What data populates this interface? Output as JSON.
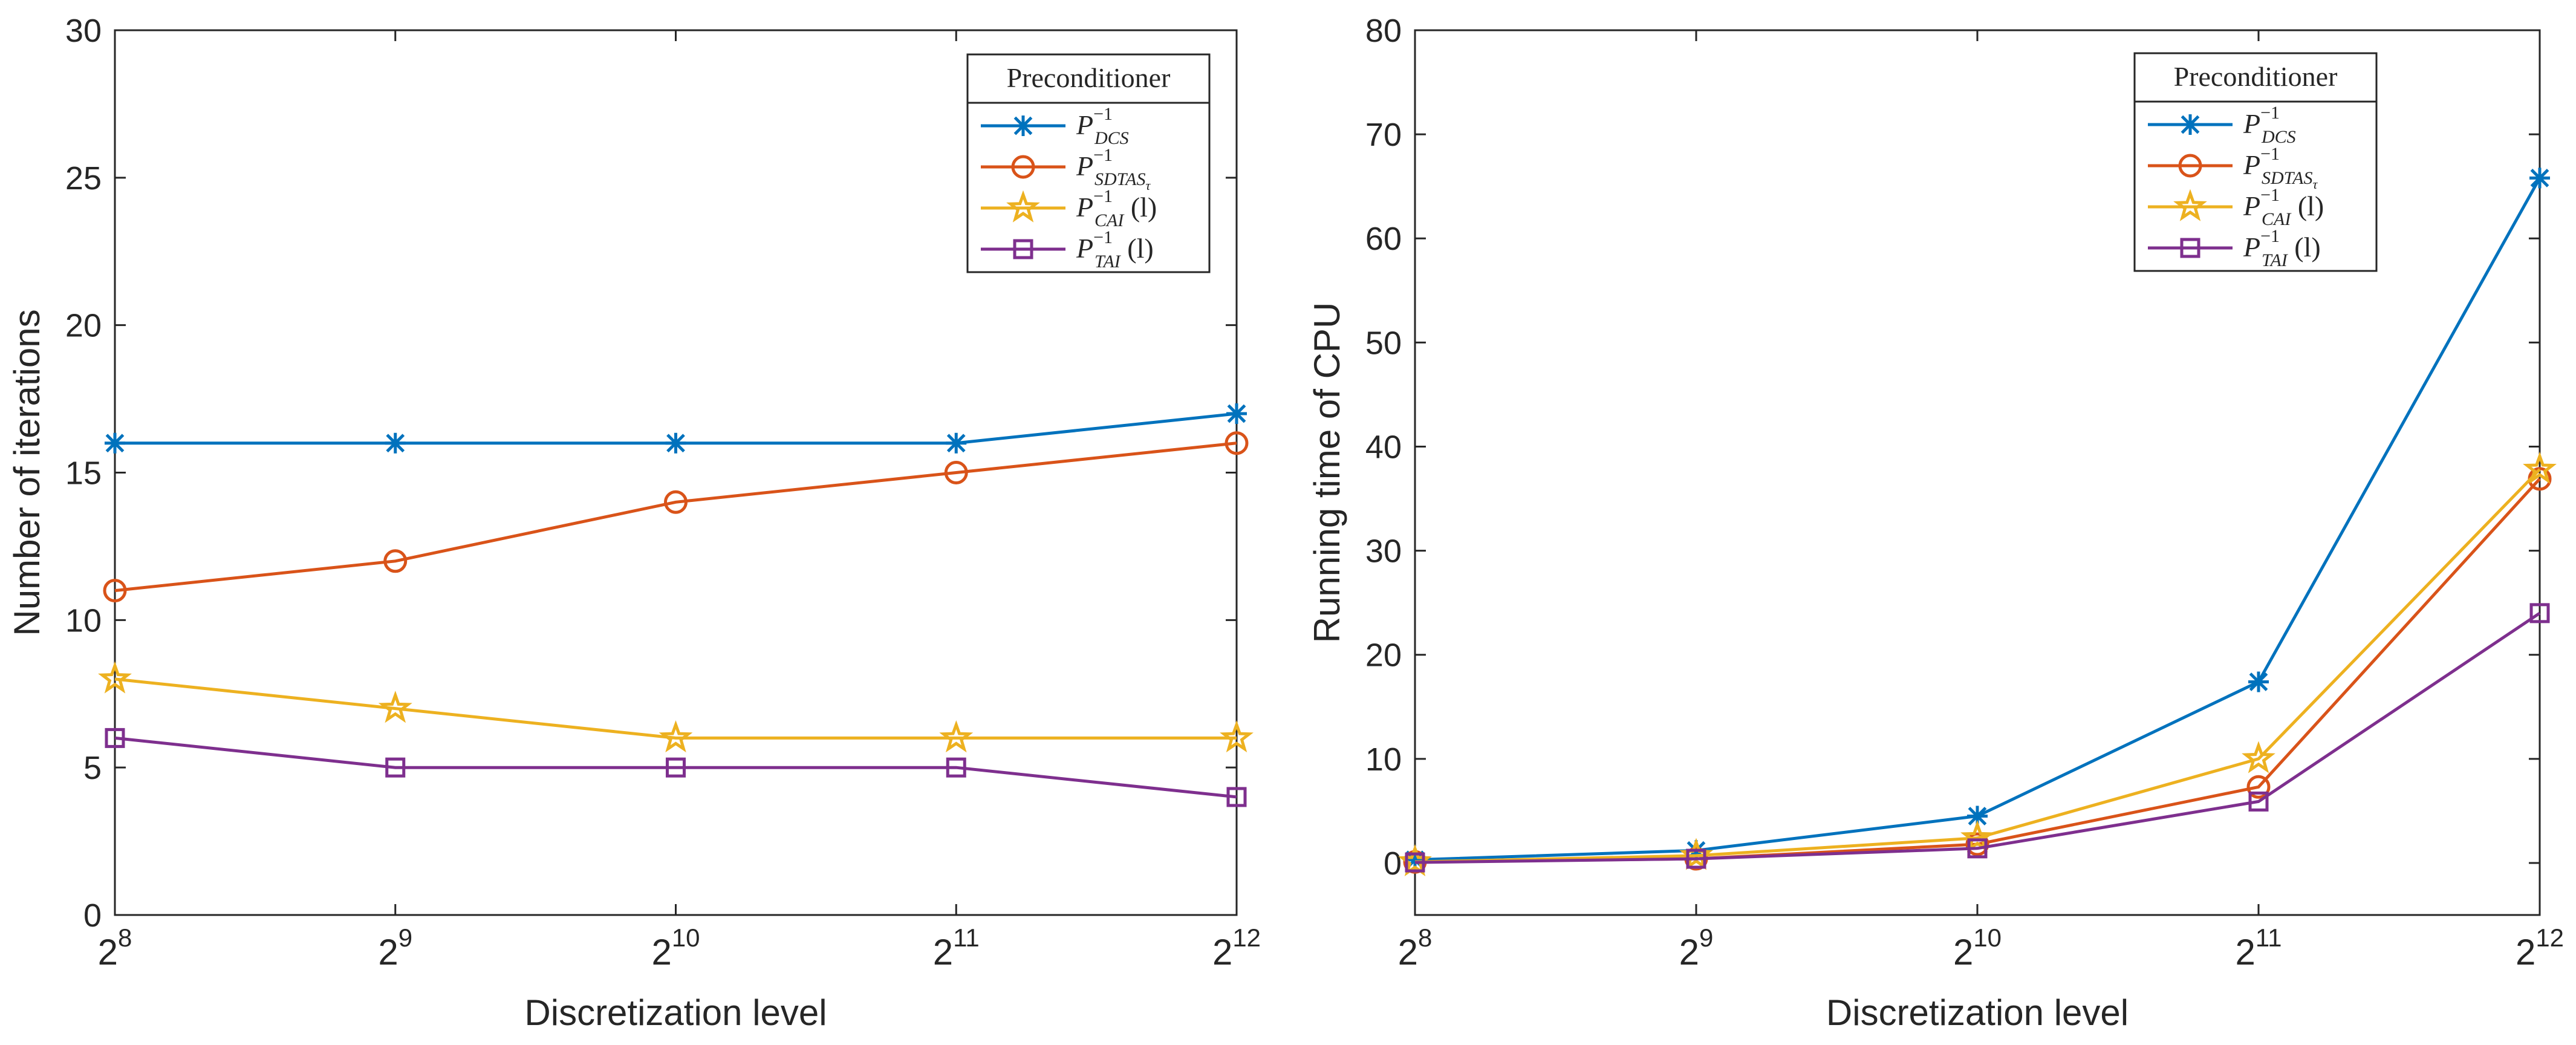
{
  "chart_data": [
    {
      "type": "line",
      "xlabel": "Discretization level",
      "ylabel": "Number of iterations",
      "categories": [
        {
          "base": "2",
          "exp": "8"
        },
        {
          "base": "2",
          "exp": "9"
        },
        {
          "base": "2",
          "exp": "10"
        },
        {
          "base": "2",
          "exp": "11"
        },
        {
          "base": "2",
          "exp": "12"
        }
      ],
      "ylim": [
        0,
        30
      ],
      "yticks": [
        0,
        5,
        10,
        15,
        20,
        25,
        30
      ],
      "legend": {
        "title": "Preconditioner",
        "placement": "top-right"
      },
      "series": [
        {
          "name": "P_DCS^-1",
          "base": "P",
          "sup": "−1",
          "sub": "DCS",
          "suffix": "",
          "color": "#0072BD",
          "marker": "asterisk",
          "values": [
            16,
            16,
            16,
            16,
            17
          ]
        },
        {
          "name": "P_SDTAS_tau^-1",
          "base": "P",
          "sup": "−1",
          "sub": "SDTAS",
          "subsub": "τ",
          "suffix": "",
          "color": "#D95319",
          "marker": "circle",
          "values": [
            11,
            12,
            14,
            15,
            16
          ]
        },
        {
          "name": "P_CAI^-1 (l)",
          "base": "P",
          "sup": "−1",
          "sub": "CAI",
          "suffix": " (l)",
          "color": "#EDB120",
          "marker": "star",
          "values": [
            8,
            7,
            6,
            6,
            6
          ]
        },
        {
          "name": "P_TAI^-1 (l)",
          "base": "P",
          "sup": "−1",
          "sub": "TAI",
          "suffix": " (l)",
          "color": "#7E2F8E",
          "marker": "square",
          "values": [
            6,
            5,
            5,
            5,
            4
          ]
        }
      ]
    },
    {
      "type": "line",
      "xlabel": "Discretization level",
      "ylabel": "Running time of CPU",
      "categories": [
        {
          "base": "2",
          "exp": "8"
        },
        {
          "base": "2",
          "exp": "9"
        },
        {
          "base": "2",
          "exp": "10"
        },
        {
          "base": "2",
          "exp": "11"
        },
        {
          "base": "2",
          "exp": "12"
        }
      ],
      "ylim": [
        -5,
        80
      ],
      "yticks": [
        0,
        10,
        20,
        30,
        40,
        50,
        60,
        70,
        80
      ],
      "legend": {
        "title": "Preconditioner",
        "placement": "top-right"
      },
      "series": [
        {
          "name": "P_DCS^-1",
          "base": "P",
          "sup": "−1",
          "sub": "DCS",
          "suffix": "",
          "color": "#0072BD",
          "marker": "asterisk",
          "values": [
            0.3,
            1.2,
            4.5,
            17.4,
            65.8
          ]
        },
        {
          "name": "P_SDTAS_tau^-1",
          "base": "P",
          "sup": "−1",
          "sub": "SDTAS",
          "subsub": "τ",
          "suffix": "",
          "color": "#D95319",
          "marker": "circle",
          "values": [
            0.1,
            0.4,
            1.8,
            7.3,
            36.9
          ]
        },
        {
          "name": "P_CAI^-1 (l)",
          "base": "P",
          "sup": "−1",
          "sub": "CAI",
          "suffix": " (l)",
          "color": "#EDB120",
          "marker": "star",
          "values": [
            0.1,
            0.7,
            2.4,
            10.0,
            37.8
          ]
        },
        {
          "name": "P_TAI^-1 (l)",
          "base": "P",
          "sup": "−1",
          "sub": "TAI",
          "suffix": " (l)",
          "color": "#7E2F8E",
          "marker": "square",
          "values": [
            0.05,
            0.4,
            1.4,
            5.9,
            24.0
          ]
        }
      ]
    }
  ]
}
